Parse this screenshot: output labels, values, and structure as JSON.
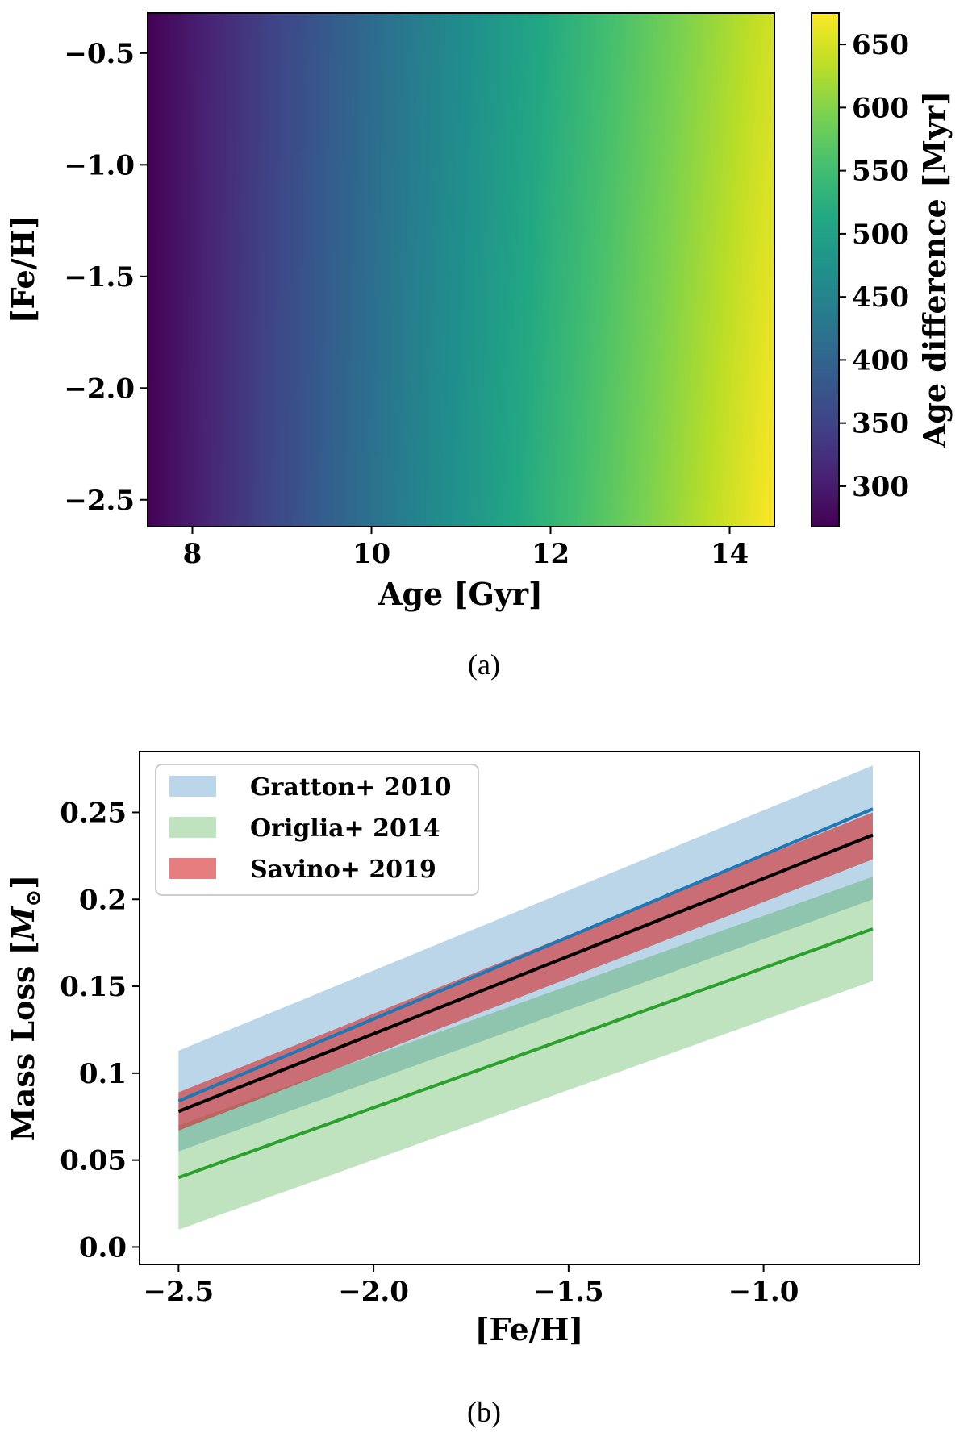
{
  "chart_data": [
    {
      "type": "heatmap",
      "caption": "(a)",
      "xlabel": "Age [Gyr]",
      "ylabel": "[Fe/H]",
      "xlim": [
        7.5,
        14.5
      ],
      "ylim": [
        -2.62,
        -0.32
      ],
      "xticks": [
        8,
        10,
        12,
        14
      ],
      "xtick_labels": [
        "8",
        "10",
        "12",
        "14"
      ],
      "yticks": [
        -0.5,
        -1.0,
        -1.5,
        -2.0,
        -2.5
      ],
      "ytick_labels": [
        "−0.5",
        "−1.0",
        "−1.5",
        "−2.0",
        "−2.5"
      ],
      "colorbar": {
        "label": "Age difference [Myr]",
        "range": [
          268,
          675
        ],
        "ticks": [
          300,
          350,
          400,
          450,
          500,
          550,
          600,
          650
        ],
        "tick_labels": [
          "300",
          "350",
          "400",
          "450",
          "500",
          "550",
          "600",
          "650"
        ],
        "colormap": "viridis"
      },
      "value_model": {
        "description": "Age difference increases with age, weakly with decreasing [Fe/H]",
        "min_value": 268,
        "max_value": 675
      }
    },
    {
      "type": "line",
      "caption": "(b)",
      "xlabel": "[Fe/H]",
      "ylabel": "Mass Loss [M_sun]",
      "ylabel_main": "Mass Loss [",
      "ylabel_symbol": "M",
      "ylabel_sub": "⊙",
      "ylabel_close": "]",
      "xlim": [
        -2.6,
        -0.6
      ],
      "ylim": [
        -0.01,
        0.285
      ],
      "xticks": [
        -2.5,
        -2.0,
        -1.5,
        -1.0
      ],
      "xtick_labels": [
        "−2.5",
        "−2.0",
        "−1.5",
        "−1.0"
      ],
      "yticks": [
        0.0,
        0.05,
        0.1,
        0.15,
        0.2,
        0.25
      ],
      "ytick_labels": [
        "0.0",
        "0.05",
        "0.1",
        "0.15",
        "0.2",
        "0.25"
      ],
      "legend_position": "top-left",
      "series": [
        {
          "name": "Gratton+ 2010",
          "color": "#1f77b4",
          "band_color": "#1f77b4",
          "band_opacity": 0.3,
          "x": [
            -2.5,
            -0.72
          ],
          "line": [
            0.084,
            0.252
          ],
          "band_upper": [
            0.113,
            0.277
          ],
          "band_lower": [
            0.055,
            0.2
          ]
        },
        {
          "name": "Origlia+ 2014",
          "color": "#2ca02c",
          "band_color": "#2ca02c",
          "band_opacity": 0.3,
          "x": [
            -2.5,
            -0.72
          ],
          "line": [
            0.04,
            0.183
          ],
          "band_upper": [
            0.07,
            0.213
          ],
          "band_lower": [
            0.01,
            0.153
          ]
        },
        {
          "name": "Savino+ 2019",
          "color": "#000000",
          "band_color": "#d62728",
          "band_opacity": 0.6,
          "x": [
            -2.5,
            -0.72
          ],
          "line": [
            0.078,
            0.237
          ],
          "band_upper": [
            0.089,
            0.25
          ],
          "band_lower": [
            0.067,
            0.223
          ]
        }
      ]
    }
  ]
}
